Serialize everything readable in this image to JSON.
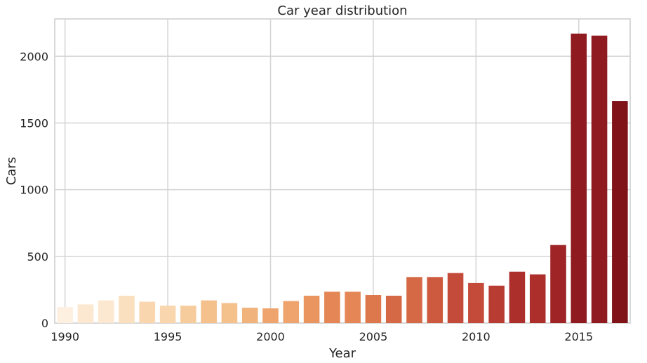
{
  "chart_data": {
    "type": "bar",
    "title": "Car year distribution",
    "xlabel": "Year",
    "ylabel": "Cars",
    "categories": [
      1990,
      1991,
      1992,
      1993,
      1994,
      1995,
      1996,
      1997,
      1998,
      1999,
      2000,
      2001,
      2002,
      2003,
      2004,
      2005,
      2006,
      2007,
      2008,
      2009,
      2010,
      2011,
      2012,
      2013,
      2014,
      2015,
      2016,
      2017
    ],
    "values": [
      120,
      140,
      170,
      205,
      160,
      130,
      130,
      170,
      150,
      115,
      110,
      165,
      205,
      235,
      235,
      210,
      205,
      345,
      345,
      375,
      300,
      280,
      385,
      365,
      585,
      2170,
      2155,
      1665
    ],
    "ylim": [
      0,
      2280
    ],
    "yticks": [
      0,
      500,
      1000,
      1500,
      2000
    ],
    "xticks": [
      "1990",
      "1995",
      "2000",
      "2005",
      "2010",
      "2015"
    ],
    "colormap": "OrRd",
    "grid": true,
    "colors": {
      "grid": "#d4d4d4",
      "axis_edge": "#cccccc",
      "palette": [
        "#fdf0e0",
        "#fce8d0",
        "#fbe0c0",
        "#f9d6ae",
        "#f7cc9c",
        "#f4c08c",
        "#f1b37c",
        "#eea46c",
        "#ea955f",
        "#e48655",
        "#dd774c",
        "#d56845",
        "#cd593f",
        "#c44a39",
        "#b93c33",
        "#ad2f2c",
        "#9f2426",
        "#8f1a1f",
        "#7f1318"
      ]
    }
  }
}
